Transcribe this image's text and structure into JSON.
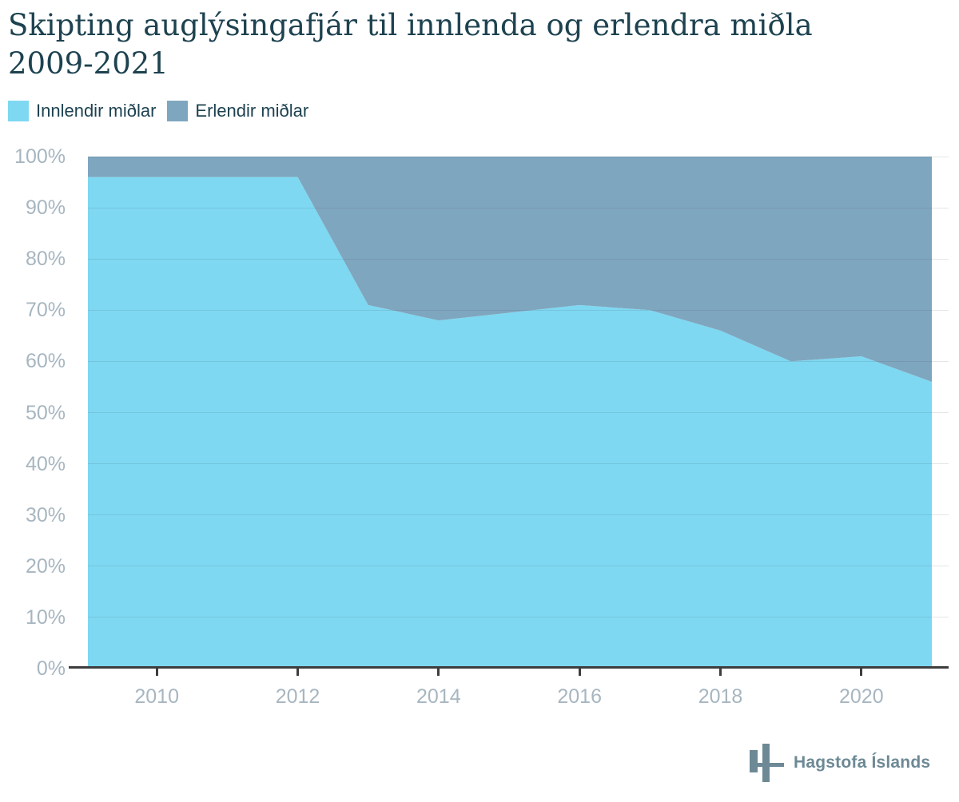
{
  "title": {
    "line1": "Skipting auglýsingafjár til innlenda og erlendra miðla",
    "line2": "2009-2021"
  },
  "legend": [
    {
      "label": "Innlendir miðlar",
      "color": "#7ed8f1"
    },
    {
      "label": "Erlendir miðlar",
      "color": "#7fa6bf"
    }
  ],
  "chart_data": {
    "type": "area",
    "stacked": true,
    "percent": true,
    "title": "Skipting auglýsingafjár til innlenda og erlendra miðla 2009-2021",
    "x": [
      2009,
      2010,
      2011,
      2012,
      2013,
      2014,
      2015,
      2016,
      2017,
      2018,
      2019,
      2020,
      2021
    ],
    "series": [
      {
        "name": "Innlendir miðlar",
        "color": "#7ed8f1",
        "values": [
          96,
          96,
          96,
          96,
          71,
          68,
          69.5,
          71,
          70,
          66,
          60,
          61,
          56
        ]
      },
      {
        "name": "Erlendir miðlar",
        "color": "#7fa6bf",
        "values": [
          4,
          4,
          4,
          4,
          29,
          32,
          30.5,
          29,
          30,
          34,
          40,
          39,
          44
        ]
      }
    ],
    "ylim": [
      0,
      100
    ],
    "yticks": [
      "0%",
      "10%",
      "20%",
      "30%",
      "40%",
      "50%",
      "60%",
      "70%",
      "80%",
      "90%",
      "100%"
    ],
    "xticks": [
      2010,
      2012,
      2014,
      2016,
      2018,
      2020
    ],
    "grid": true,
    "legend_position": "top-left"
  },
  "footer": {
    "brand": "Hagstofa Íslands"
  },
  "colors": {
    "title_text": "#1d4250",
    "axis_labels": "#a7b6c0",
    "axis_line": "#3d3d3d",
    "gridline": "rgba(55,75,90,0.14)",
    "background": "#ffffff",
    "brand": "#6d8995"
  }
}
